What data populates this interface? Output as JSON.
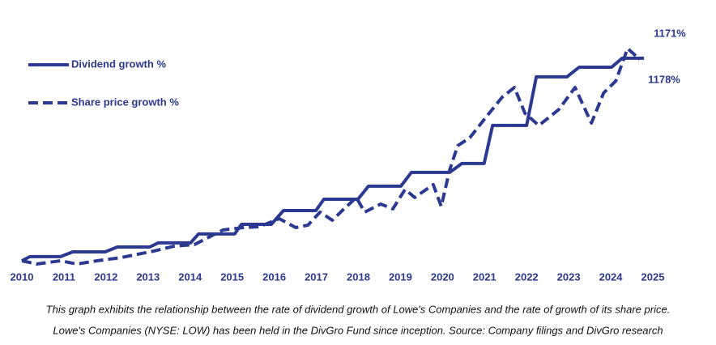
{
  "chart_data": {
    "type": "line",
    "xlim": [
      2010,
      2025
    ],
    "xticks": [
      2010,
      2011,
      2012,
      2013,
      2014,
      2015,
      2016,
      2017,
      2018,
      2019,
      2020,
      2021,
      2022,
      2023,
      2024,
      2025
    ],
    "ylim": [
      0,
      1300
    ],
    "legend": "top-left",
    "annotations": [
      "1171%",
      "1178%"
    ],
    "caption": [
      "This graph exhibits the relationship between the rate of dividend growth of Lowe's Companies and the rate of growth of its share price.",
      "Lowe's Companies (NYSE: LOW) has been held in the DivGro Fund since inception. Source: Company filings and DivGro research"
    ],
    "series": [
      {
        "name": "Dividend growth %",
        "color": "#2b3990",
        "dash": false,
        "x": [
          2010,
          2010.19,
          2010.92,
          2011.21,
          2011.98,
          2012.27,
          2013.04,
          2013.24,
          2014.01,
          2014.2,
          2015.06,
          2015.22,
          2015.93,
          2016.22,
          2016.99,
          2017.18,
          2017.99,
          2018.24,
          2019.01,
          2019.26,
          2020.17,
          2020.46,
          2020.99,
          2021.19,
          2022.0,
          2022.23,
          2022.96,
          2023.25,
          2024.02,
          2024.27,
          2024.79
        ],
        "values": [
          0,
          24,
          24,
          52,
          52,
          80,
          80,
          104,
          104,
          156,
          156,
          212,
          212,
          292,
          292,
          358,
          358,
          434,
          434,
          514,
          514,
          566,
          566,
          787,
          787,
          1070,
          1070,
          1126,
          1126,
          1178,
          1178
        ]
      },
      {
        "name": "Share price growth %",
        "color": "#2b3990",
        "dash": true,
        "x": [
          2010,
          2010.35,
          2010.92,
          2011.31,
          2011.79,
          2012.37,
          2013.14,
          2013.62,
          2014.1,
          2014.78,
          2015.26,
          2015.64,
          2016.12,
          2016.51,
          2016.8,
          2017.09,
          2017.38,
          2017.66,
          2017.95,
          2018.15,
          2018.53,
          2018.82,
          2019.11,
          2019.34,
          2019.78,
          2019.97,
          2020.17,
          2020.36,
          2020.65,
          2021.03,
          2021.42,
          2021.71,
          2021.96,
          2022.29,
          2022.77,
          2023.15,
          2023.54,
          2023.83,
          2024.12,
          2024.4,
          2024.69
        ],
        "values": [
          0,
          -19,
          0,
          -19,
          0,
          19,
          57,
          85,
          94,
          179,
          193,
          198,
          245,
          193,
          207,
          283,
          236,
          302,
          368,
          283,
          330,
          302,
          415,
          368,
          443,
          316,
          528,
          669,
          716,
          834,
          952,
          1008,
          858,
          787,
          881,
          1008,
          801,
          976,
          1046,
          1235,
          1171
        ]
      }
    ]
  }
}
